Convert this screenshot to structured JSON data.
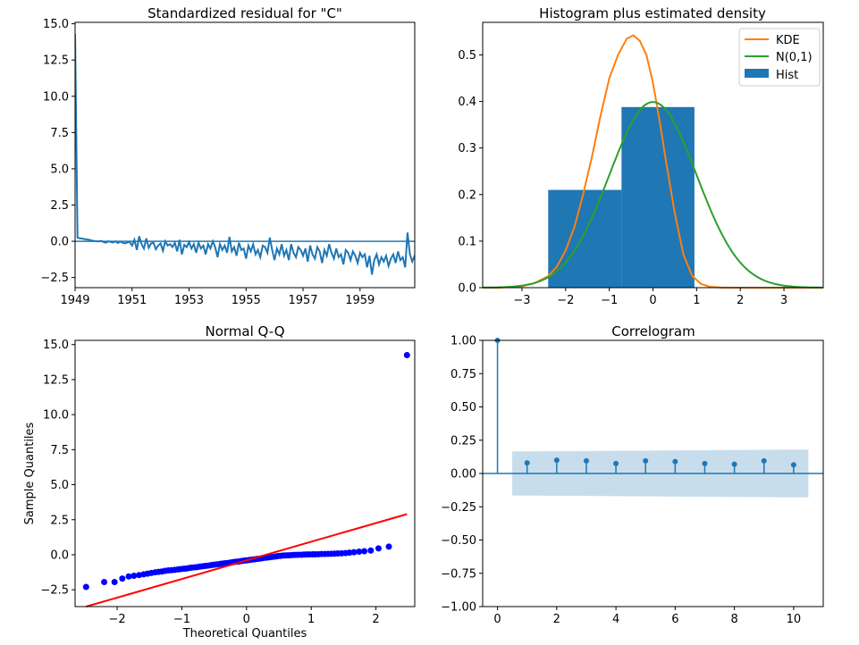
{
  "chart_data": [
    {
      "type": "line",
      "title": "Standardized residual for \"C\"",
      "xlabel": "",
      "ylabel": "",
      "x_tick_labels": [
        "1949",
        "1951",
        "1953",
        "1955",
        "1957",
        "1959"
      ],
      "x_ticks": [
        1949,
        1951,
        1953,
        1955,
        1957,
        1959
      ],
      "xlim": [
        1949.0,
        1960.92
      ],
      "y_ticks": [
        -2.5,
        0.0,
        2.5,
        5.0,
        7.5,
        10.0,
        12.5,
        15.0
      ],
      "y_tick_labels": [
        "−2.5",
        "0.0",
        "2.5",
        "5.0",
        "7.5",
        "10.0",
        "12.5",
        "15.0"
      ],
      "ylim": [
        -3.2,
        15.1
      ],
      "reference_line": 0.0,
      "series": [
        {
          "color": "#1f77b4",
          "x_start": 1949.0,
          "x_step": 0.08333,
          "values": [
            14.3,
            0.25,
            0.2,
            0.18,
            0.15,
            0.12,
            0.1,
            0.05,
            0.02,
            0.0,
            0.0,
            0.02,
            -0.05,
            -0.1,
            0.0,
            -0.05,
            -0.08,
            0.0,
            -0.12,
            -0.02,
            -0.1,
            -0.15,
            -0.08,
            -0.05,
            -0.3,
            0.1,
            -0.6,
            0.35,
            -0.2,
            -0.5,
            0.2,
            -0.45,
            -0.15,
            -0.1,
            -0.55,
            -0.3,
            -0.15,
            -0.65,
            0.0,
            -0.3,
            -0.2,
            -0.4,
            -0.1,
            -0.7,
            0.1,
            -0.9,
            -0.25,
            -0.4,
            -0.05,
            -0.5,
            -0.2,
            -0.8,
            -0.1,
            -0.5,
            -0.3,
            -0.9,
            -0.2,
            -0.5,
            0.0,
            -0.4,
            -1.1,
            -0.2,
            -0.6,
            -0.3,
            -0.8,
            0.3,
            -0.7,
            -0.4,
            -1.0,
            -0.1,
            -0.6,
            -0.5,
            -1.2,
            -0.3,
            -0.7,
            -0.2,
            -0.9,
            -0.6,
            -1.1,
            -0.3,
            -0.4,
            -0.8,
            0.25,
            -0.6,
            -1.3,
            -0.5,
            -0.9,
            -0.2,
            -1.0,
            -0.6,
            -1.3,
            -0.2,
            -0.8,
            -1.1,
            -0.4,
            -0.6,
            -1.0,
            -0.5,
            -1.4,
            -0.3,
            -0.9,
            -1.2,
            -0.4,
            -0.7,
            -1.5,
            -0.6,
            -1.0,
            -0.2,
            -0.8,
            -1.2,
            -0.5,
            -1.1,
            -0.9,
            -1.6,
            -0.6,
            -0.8,
            -1.3,
            -0.7,
            -1.0,
            -1.5,
            -0.8,
            -1.1,
            -0.9,
            -1.8,
            -1.0,
            -2.3,
            -1.3,
            -0.9,
            -1.6,
            -1.1,
            -1.4,
            -1.0,
            -1.7,
            -1.2,
            -0.9,
            -1.5,
            -0.7,
            -1.3,
            -1.1,
            -1.8,
            0.6,
            -0.9,
            -1.4,
            -1.0,
            -1.6,
            -1.2,
            -0.8,
            -1.5,
            -1.8,
            -0.7,
            -1.5
          ]
        }
      ]
    },
    {
      "type": "bar",
      "title": "Histogram plus estimated density",
      "xlabel": "",
      "ylabel": "",
      "xlim": [
        -3.9,
        3.9
      ],
      "x_ticks": [
        -3,
        -2,
        -1,
        0,
        1,
        2,
        3
      ],
      "x_tick_labels": [
        "−3",
        "−2",
        "−1",
        "0",
        "1",
        "2",
        "3"
      ],
      "ylim": [
        0.0,
        0.57
      ],
      "y_ticks": [
        0.0,
        0.1,
        0.2,
        0.3,
        0.4,
        0.5
      ],
      "y_tick_labels": [
        "0.0",
        "0.1",
        "0.2",
        "0.3",
        "0.4",
        "0.5"
      ],
      "legend": "top-right",
      "histogram": {
        "name": "Hist",
        "color": "#1f77b4",
        "bins": [
          {
            "x0": -2.4,
            "x1": -0.72,
            "value": 0.21
          },
          {
            "x0": -0.72,
            "x1": 0.95,
            "value": 0.388
          }
        ]
      },
      "series": [
        {
          "name": "KDE",
          "color": "#ff7f0e",
          "x": [
            -3.9,
            -3.5,
            -3.0,
            -2.7,
            -2.4,
            -2.2,
            -2.0,
            -1.8,
            -1.6,
            -1.4,
            -1.2,
            -1.0,
            -0.8,
            -0.6,
            -0.45,
            -0.3,
            -0.15,
            0.0,
            0.15,
            0.3,
            0.5,
            0.7,
            0.9,
            1.1,
            1.3,
            1.6,
            2.0,
            2.5,
            3.0,
            3.9
          ],
          "y": [
            0.0,
            0.0,
            0.003,
            0.01,
            0.025,
            0.045,
            0.08,
            0.13,
            0.2,
            0.28,
            0.37,
            0.45,
            0.5,
            0.535,
            0.542,
            0.53,
            0.5,
            0.44,
            0.36,
            0.27,
            0.16,
            0.07,
            0.025,
            0.008,
            0.002,
            0.0,
            0.0,
            0.0,
            0.0,
            0.0
          ]
        },
        {
          "name": "N(0,1)",
          "color": "#2ca02c",
          "function": "normal_pdf",
          "mean": 0,
          "sd": 1
        }
      ]
    },
    {
      "type": "scatter",
      "title": "Normal Q-Q",
      "xlabel": "Theoretical Quantiles",
      "ylabel": "Sample Quantiles",
      "xlim": [
        -2.65,
        2.6
      ],
      "x_ticks": [
        -2,
        -1,
        0,
        1,
        2
      ],
      "x_tick_labels": [
        "−2",
        "−1",
        "0",
        "1",
        "2"
      ],
      "ylim": [
        -3.7,
        15.3
      ],
      "y_ticks": [
        -2.5,
        0.0,
        2.5,
        5.0,
        7.5,
        10.0,
        12.5,
        15.0
      ],
      "y_tick_labels": [
        "−2.5",
        "0.0",
        "2.5",
        "5.0",
        "7.5",
        "10.0",
        "12.5",
        "15.0"
      ],
      "reference_line": {
        "color": "#ff0000",
        "from": [
          -2.48,
          -3.7
        ],
        "to": [
          2.48,
          2.9
        ]
      },
      "points_color": "#0000ff",
      "points": [
        [
          -2.48,
          -2.3
        ],
        [
          -2.2,
          -1.95
        ],
        [
          -2.04,
          -1.95
        ],
        [
          -1.92,
          -1.7
        ],
        [
          -1.82,
          -1.55
        ],
        [
          -1.74,
          -1.5
        ],
        [
          -1.66,
          -1.45
        ],
        [
          -1.59,
          -1.4
        ],
        [
          -1.53,
          -1.35
        ],
        [
          -1.47,
          -1.3
        ],
        [
          -1.41,
          -1.25
        ],
        [
          -1.36,
          -1.22
        ],
        [
          -1.31,
          -1.2
        ],
        [
          -1.26,
          -1.15
        ],
        [
          -1.21,
          -1.12
        ],
        [
          -1.16,
          -1.1
        ],
        [
          -1.11,
          -1.08
        ],
        [
          -1.06,
          -1.05
        ],
        [
          -1.02,
          -1.02
        ],
        [
          -0.97,
          -1.0
        ],
        [
          -0.93,
          -0.98
        ],
        [
          -0.89,
          -0.95
        ],
        [
          -0.85,
          -0.92
        ],
        [
          -0.8,
          -0.9
        ],
        [
          -0.76,
          -0.88
        ],
        [
          -0.72,
          -0.85
        ],
        [
          -0.68,
          -0.82
        ],
        [
          -0.64,
          -0.8
        ],
        [
          -0.6,
          -0.78
        ],
        [
          -0.56,
          -0.75
        ],
        [
          -0.52,
          -0.72
        ],
        [
          -0.48,
          -0.7
        ],
        [
          -0.44,
          -0.68
        ],
        [
          -0.4,
          -0.65
        ],
        [
          -0.36,
          -0.62
        ],
        [
          -0.32,
          -0.6
        ],
        [
          -0.28,
          -0.58
        ],
        [
          -0.24,
          -0.55
        ],
        [
          -0.2,
          -0.52
        ],
        [
          -0.16,
          -0.5
        ],
        [
          -0.12,
          -0.48
        ],
        [
          -0.08,
          -0.45
        ],
        [
          -0.04,
          -0.42
        ],
        [
          0.0,
          -0.4
        ],
        [
          0.04,
          -0.38
        ],
        [
          0.08,
          -0.35
        ],
        [
          0.12,
          -0.33
        ],
        [
          0.16,
          -0.3
        ],
        [
          0.2,
          -0.28
        ],
        [
          0.24,
          -0.25
        ],
        [
          0.28,
          -0.22
        ],
        [
          0.32,
          -0.2
        ],
        [
          0.36,
          -0.18
        ],
        [
          0.4,
          -0.15
        ],
        [
          0.44,
          -0.13
        ],
        [
          0.48,
          -0.1
        ],
        [
          0.52,
          -0.08
        ],
        [
          0.56,
          -0.06
        ],
        [
          0.6,
          -0.05
        ],
        [
          0.64,
          -0.04
        ],
        [
          0.68,
          -0.03
        ],
        [
          0.72,
          -0.02
        ],
        [
          0.76,
          -0.01
        ],
        [
          0.8,
          0.0
        ],
        [
          0.85,
          0.0
        ],
        [
          0.89,
          0.01
        ],
        [
          0.93,
          0.02
        ],
        [
          0.97,
          0.02
        ],
        [
          1.02,
          0.03
        ],
        [
          1.06,
          0.03
        ],
        [
          1.11,
          0.04
        ],
        [
          1.16,
          0.05
        ],
        [
          1.21,
          0.05
        ],
        [
          1.26,
          0.06
        ],
        [
          1.31,
          0.07
        ],
        [
          1.36,
          0.08
        ],
        [
          1.41,
          0.09
        ],
        [
          1.47,
          0.1
        ],
        [
          1.53,
          0.12
        ],
        [
          1.59,
          0.15
        ],
        [
          1.66,
          0.18
        ],
        [
          1.74,
          0.22
        ],
        [
          1.82,
          0.25
        ],
        [
          1.92,
          0.3
        ],
        [
          2.04,
          0.45
        ],
        [
          2.2,
          0.58
        ],
        [
          2.48,
          14.25
        ]
      ]
    },
    {
      "type": "bar",
      "subtype": "stem",
      "title": "Correlogram",
      "xlabel": "",
      "ylabel": "",
      "xlim": [
        -0.5,
        11.0
      ],
      "x_ticks": [
        0,
        2,
        4,
        6,
        8,
        10
      ],
      "x_tick_labels": [
        "0",
        "2",
        "4",
        "6",
        "8",
        "10"
      ],
      "ylim": [
        -1.0,
        1.0
      ],
      "y_ticks": [
        -1.0,
        -0.75,
        -0.5,
        -0.25,
        0.0,
        0.25,
        0.5,
        0.75,
        1.0
      ],
      "y_tick_labels": [
        "−1.00",
        "−0.75",
        "−0.50",
        "−0.25",
        "0.00",
        "0.25",
        "0.50",
        "0.75",
        "1.00"
      ],
      "color": "#1f77b4",
      "band_color": "#1f77b4",
      "lags": [
        0,
        1,
        2,
        3,
        4,
        5,
        6,
        7,
        8,
        9,
        10
      ],
      "values": [
        1.0,
        0.08,
        0.1,
        0.095,
        0.075,
        0.095,
        0.09,
        0.075,
        0.07,
        0.095,
        0.065
      ],
      "confidence_band": {
        "x": [
          0.5,
          10.5
        ],
        "upper": [
          0.165,
          0.18
        ],
        "lower": [
          -0.165,
          -0.18
        ]
      }
    }
  ]
}
